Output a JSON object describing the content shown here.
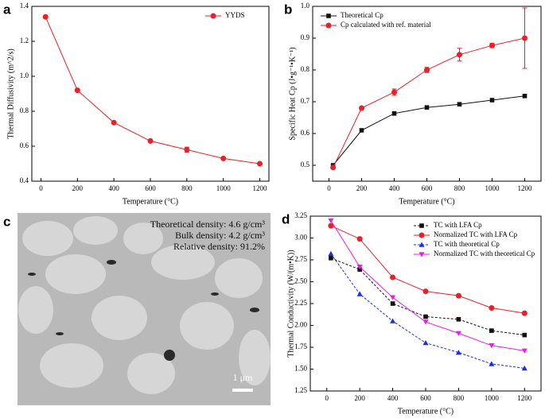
{
  "chart_data": [
    {
      "type": "line",
      "panel_label": "a",
      "xlabel": "Temperature (°C)",
      "ylabel": "Thermal Diffusivity (m^2/s)",
      "x": [
        25,
        200,
        400,
        600,
        800,
        1000,
        1200
      ],
      "series": [
        {
          "name": "YYDS",
          "color": "#e8202a",
          "marker": "circle",
          "dash": false,
          "values": [
            1.34,
            0.92,
            0.735,
            0.63,
            0.58,
            0.53,
            0.5
          ],
          "errors": [
            null,
            null,
            null,
            null,
            0.015,
            null,
            null
          ]
        }
      ],
      "xlim": [
        -50,
        1250
      ],
      "xticks": [
        0,
        200,
        400,
        600,
        800,
        1000,
        1200
      ],
      "ylim": [
        0.4,
        1.4
      ],
      "yticks": [
        0.4,
        0.6,
        0.8,
        {
          "value": 1,
          "label": "1.0"
        },
        1.2,
        1.4
      ],
      "legend": "upper right"
    },
    {
      "type": "line",
      "panel_label": "b",
      "xlabel": "Temperature (°C)",
      "ylabel": "Specific Heat Cp (J•g⁻¹•K⁻¹)",
      "x": [
        25,
        200,
        400,
        600,
        800,
        1000,
        1200
      ],
      "series": [
        {
          "name": "Theoretical Cp",
          "color": "#111111",
          "marker": "square",
          "dash": false,
          "values": [
            0.5,
            0.61,
            0.663,
            0.682,
            0.692,
            0.705,
            0.718
          ]
        },
        {
          "name": "Cp calculated with ref. material",
          "color": "#e8202a",
          "marker": "circle",
          "dash": false,
          "values": [
            0.493,
            0.68,
            0.73,
            0.8,
            0.848,
            0.877,
            0.9
          ],
          "errors": [
            null,
            null,
            0.01,
            0.008,
            0.02,
            0.007,
            0.095
          ]
        }
      ],
      "xlim": [
        -100,
        1300
      ],
      "xticks": [
        0,
        200,
        400,
        600,
        800,
        1000,
        1200
      ],
      "ylim": [
        0.45,
        1
      ],
      "yticks": [
        0.5,
        0.6,
        0.7,
        0.8,
        0.9,
        {
          "value": 1,
          "label": "1.0"
        }
      ],
      "legend": "upper left"
    },
    {
      "type": "line",
      "panel_label": "d",
      "xlabel": "Temperature (°C)",
      "ylabel": "Thermal Conductivity (W/(m•K))",
      "x": [
        25,
        200,
        400,
        600,
        800,
        1000,
        1200
      ],
      "series": [
        {
          "name": "TC with LFA Cp",
          "color": "#111111",
          "marker": "square",
          "dash": true,
          "values": [
            2.77,
            2.64,
            2.25,
            2.1,
            2.07,
            1.94,
            1.89
          ]
        },
        {
          "name": "Normalized TC with LFA Cp",
          "color": "#e8202a",
          "marker": "circle",
          "dash": false,
          "values": [
            3.14,
            2.99,
            2.55,
            2.39,
            2.34,
            2.2,
            2.14
          ]
        },
        {
          "name": "TC with theoretical Cp",
          "color": "#1a2ee8",
          "marker": "triangle",
          "dash": true,
          "values": [
            2.82,
            2.36,
            2.05,
            1.8,
            1.69,
            1.56,
            1.51
          ]
        },
        {
          "name": "Normalized TC with theoretical Cp",
          "color": "#e81ee8",
          "marker": "triangle-down",
          "dash": false,
          "values": [
            3.2,
            2.67,
            2.32,
            2.04,
            1.91,
            1.77,
            1.71
          ]
        }
      ],
      "xlim": [
        -100,
        1300
      ],
      "xticks": [
        0,
        200,
        400,
        600,
        800,
        1000,
        1200
      ],
      "ylim": [
        1.25,
        3.25
      ],
      "yticks": [
        1.25,
        {
          "value": 1.5,
          "label": "1.50"
        },
        1.75,
        {
          "value": 2,
          "label": "2.00"
        },
        2.25,
        {
          "value": 2.5,
          "label": "2.50"
        },
        2.75,
        {
          "value": 3,
          "label": "3.00"
        },
        3.25
      ],
      "legend": "upper right"
    }
  ],
  "image_panel": {
    "panel_label": "c",
    "lines": [
      "Theoretical density:  4.6 g/cm³",
      "Bulk density:  4.2 g/cm³",
      "Relative density:  91.2%"
    ],
    "scale_bar": "1 μm"
  }
}
